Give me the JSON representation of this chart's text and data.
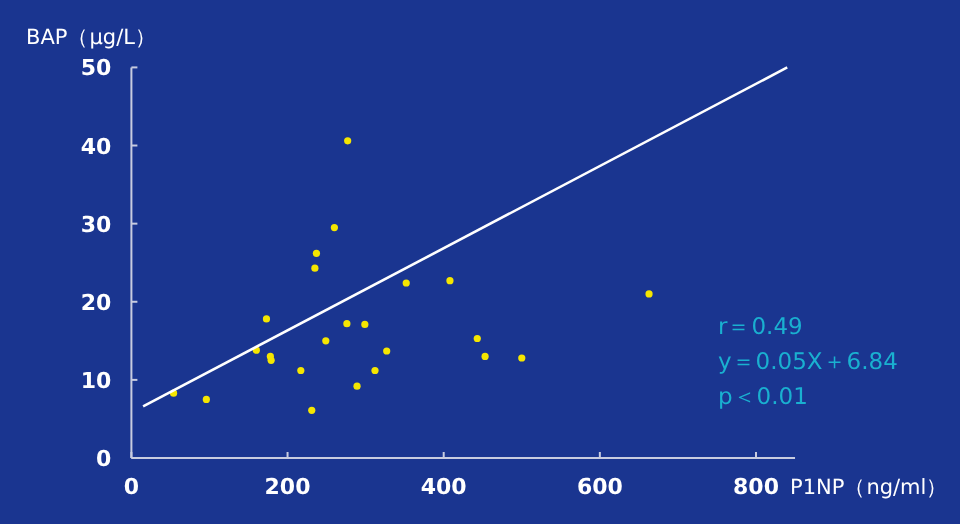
{
  "chart_data": {
    "type": "scatter",
    "xlabel": "P1NP（ng/ml）",
    "ylabel": "BAP（μg/L）",
    "xlim": [
      0,
      850
    ],
    "xticks": [
      0,
      200,
      400,
      600,
      800
    ],
    "ylim": [
      0,
      50
    ],
    "yticks": [
      0,
      10,
      20,
      30,
      40,
      50
    ],
    "grid": false,
    "series": [
      {
        "marker": "circle",
        "color": "#f5e600",
        "x": [
          54,
          96,
          160,
          173,
          178,
          179,
          217,
          231,
          235,
          237,
          249,
          260,
          277,
          276,
          289,
          299,
          312,
          327,
          352,
          408,
          443,
          453,
          500,
          663
        ],
        "values": [
          8.3,
          7.5,
          13.8,
          17.8,
          13.0,
          12.5,
          11.2,
          6.1,
          24.3,
          26.2,
          15.0,
          29.5,
          40.6,
          17.2,
          9.2,
          17.1,
          11.2,
          13.7,
          22.4,
          22.7,
          15.3,
          13.0,
          12.8,
          21.0
        ]
      },
      {
        "type": "line",
        "color": "#ffffff",
        "x": [
          15,
          840
        ],
        "values": [
          6.6,
          50
        ]
      }
    ],
    "annotations": [
      "r＝0.49",
      "y＝0.05X＋6.84",
      "p＜0.01"
    ]
  }
}
